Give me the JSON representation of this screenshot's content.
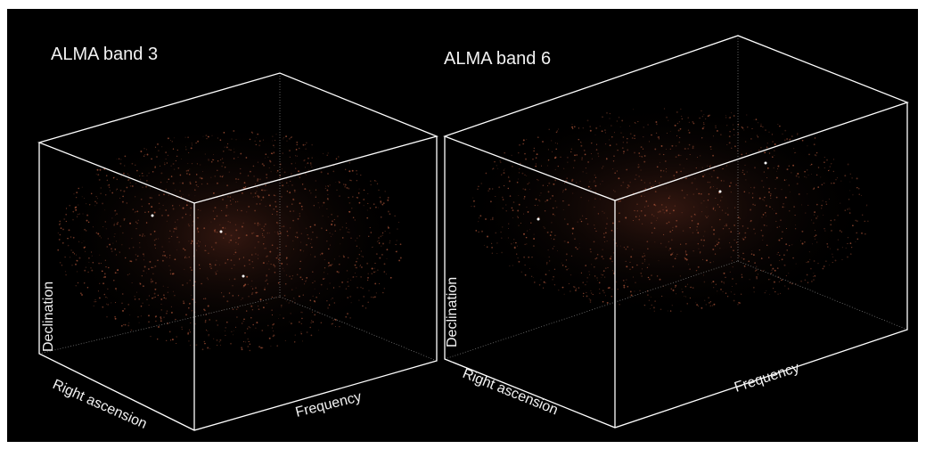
{
  "panels": [
    {
      "title": "ALMA band 3",
      "axis_labels": {
        "vertical": "Declination",
        "depth": "Right ascension",
        "horizontal": "Frequency"
      }
    },
    {
      "title": "ALMA band 6",
      "axis_labels": {
        "vertical": "Declination",
        "depth": "Right ascension",
        "horizontal": "Frequency"
      }
    }
  ],
  "colors": {
    "background": "#000000",
    "edge": "#ffffff",
    "hidden_edge": "#777777",
    "point": "#b0573a",
    "bright_point": "#ffffff",
    "label": "#f2f2f2"
  }
}
